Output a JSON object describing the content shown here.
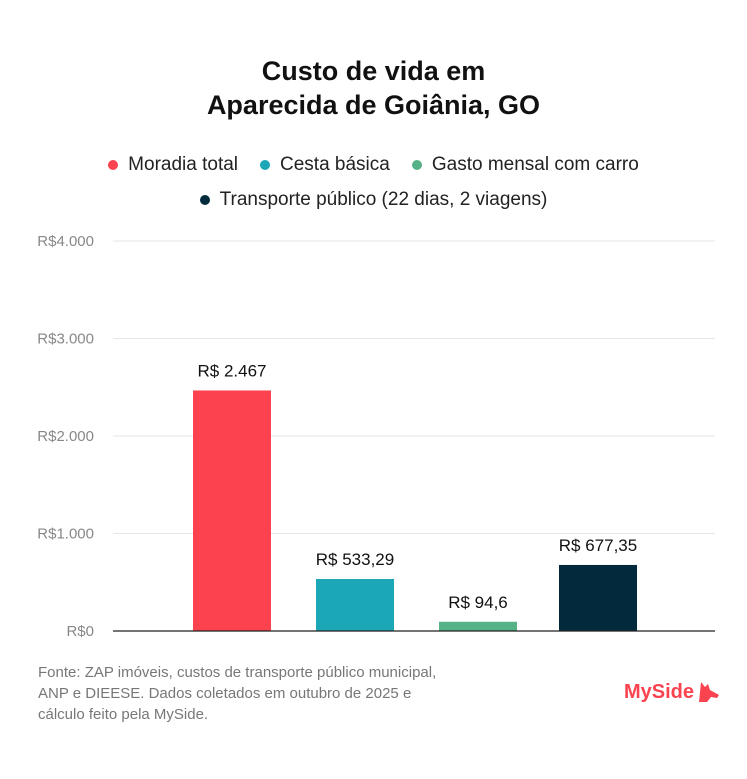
{
  "chart_data": {
    "type": "bar",
    "title": [
      "Custo de vida em",
      "Aparecida de Goiânia, GO"
    ],
    "categories": [
      "Moradia total",
      "Cesta básica",
      "Gasto mensal com carro",
      "Transporte público (22 dias, 2 viagens)"
    ],
    "values": [
      2467,
      533.29,
      94.6,
      677.35
    ],
    "data_labels": [
      "R$ 2.467",
      "R$ 533,29",
      "R$ 94,6",
      "R$ 677,35"
    ],
    "colors": [
      "#FC424F",
      "#1BA7B5",
      "#55B287",
      "#03293D"
    ],
    "ylim": [
      0,
      4000
    ],
    "yticks": [
      0,
      1000,
      2000,
      3000,
      4000
    ],
    "ytick_labels": [
      "R$0",
      "R$1.000",
      "R$2.000",
      "R$3.000",
      "R$4.000"
    ],
    "grid": true,
    "legend_position": "top"
  },
  "source": [
    "Fonte: ZAP imóveis, custos de transporte público municipal,",
    "ANP e DIEESE. Dados coletados em outubro de 2025 e",
    "cálculo feito pela MySide."
  ],
  "logo": "MySide"
}
